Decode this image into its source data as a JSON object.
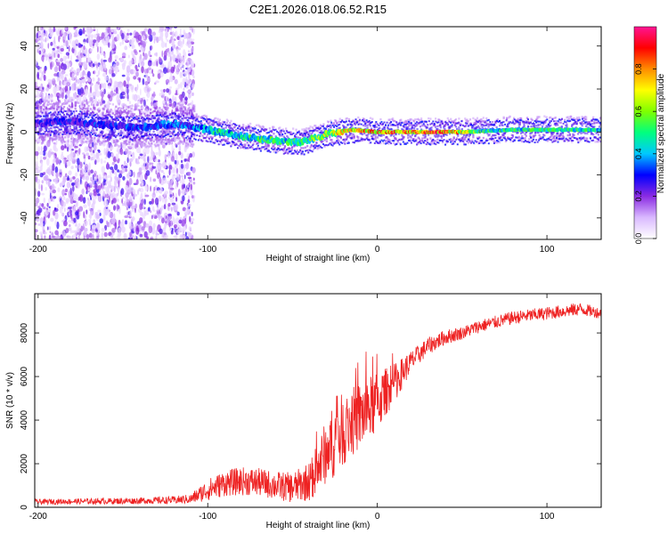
{
  "title": "C2E1.2026.018.06.52.R15",
  "chart_data": [
    {
      "type": "heatmap",
      "xlabel": "Height of straight line (km)",
      "ylabel": "Frequency (Hz)",
      "xlim": [
        -202,
        132
      ],
      "ylim": [
        -50,
        49
      ],
      "xticks": [
        -200,
        -100,
        0,
        100
      ],
      "yticks": [
        -40,
        -20,
        0,
        20,
        40
      ],
      "xtick_labels": [
        "-200",
        "-100",
        "0",
        "100"
      ],
      "ytick_labels": [
        "-40",
        "-20",
        "0",
        "20",
        "40"
      ],
      "ridge": [
        {
          "x": -200,
          "y": 4
        },
        {
          "x": -180,
          "y": 5
        },
        {
          "x": -160,
          "y": 3
        },
        {
          "x": -140,
          "y": 2
        },
        {
          "x": -120,
          "y": 4
        },
        {
          "x": -100,
          "y": 1
        },
        {
          "x": -80,
          "y": -2
        },
        {
          "x": -60,
          "y": -4
        },
        {
          "x": -45,
          "y": -5
        },
        {
          "x": -30,
          "y": -1
        },
        {
          "x": -15,
          "y": 1
        },
        {
          "x": 0,
          "y": 0
        },
        {
          "x": 20,
          "y": 0
        },
        {
          "x": 50,
          "y": 0
        },
        {
          "x": 80,
          "y": 1
        },
        {
          "x": 110,
          "y": 1
        },
        {
          "x": 132,
          "y": 1
        }
      ],
      "peak_amplitude": [
        {
          "x": -200,
          "a": 0.32
        },
        {
          "x": -110,
          "a": 0.42
        },
        {
          "x": -100,
          "a": 0.55
        },
        {
          "x": -60,
          "a": 0.6
        },
        {
          "x": -40,
          "a": 0.65
        },
        {
          "x": -20,
          "a": 0.85
        },
        {
          "x": 0,
          "a": 0.95
        },
        {
          "x": 20,
          "a": 1.0
        },
        {
          "x": 45,
          "a": 0.95
        },
        {
          "x": 60,
          "a": 0.6
        },
        {
          "x": 100,
          "a": 0.62
        },
        {
          "x": 132,
          "a": 0.6
        }
      ],
      "noise_region_x": [
        -202,
        -108
      ],
      "colorbar": {
        "label": "Normalized spectral amplitude",
        "range": [
          0,
          1
        ],
        "ticks": [
          0,
          0.2,
          0.4,
          0.6,
          0.8
        ],
        "tick_labels": [
          "0.0",
          "0.2",
          "0.4",
          "0.6",
          "0.8"
        ],
        "colors": [
          "#ffffff",
          "#d9b8ff",
          "#8a2be2",
          "#0000ff",
          "#00c8ff",
          "#00ff7f",
          "#7fff00",
          "#ffff00",
          "#ff8c00",
          "#ff0000",
          "#ff1493"
        ]
      }
    },
    {
      "type": "line",
      "xlabel": "Height of straight line (km)",
      "ylabel": "SNR (10 * v/v)",
      "xlim": [
        -202,
        132
      ],
      "ylim": [
        0,
        9800
      ],
      "xticks": [
        -200,
        -100,
        0,
        100
      ],
      "yticks": [
        0,
        2000,
        4000,
        6000,
        8000
      ],
      "xtick_labels": [
        "-200",
        "-100",
        "0",
        "100"
      ],
      "ytick_labels": [
        "0",
        "2000",
        "4000",
        "6000",
        "8000"
      ],
      "color": "#ee2222",
      "series": [
        {
          "name": "SNR",
          "x": [
            -202,
            -180,
            -160,
            -140,
            -120,
            -110,
            -100,
            -90,
            -80,
            -70,
            -60,
            -50,
            -40,
            -35,
            -30,
            -25,
            -20,
            -15,
            -10,
            -5,
            0,
            5,
            10,
            15,
            20,
            30,
            40,
            50,
            60,
            70,
            80,
            90,
            100,
            110,
            120,
            132
          ],
          "values": [
            250,
            270,
            280,
            300,
            330,
            380,
            800,
            1100,
            1200,
            1150,
            1000,
            900,
            1200,
            1800,
            2600,
            3100,
            3600,
            3900,
            4200,
            4500,
            4800,
            5300,
            5700,
            6200,
            6700,
            7400,
            7800,
            8000,
            8300,
            8500,
            8700,
            8800,
            8900,
            9000,
            9100,
            8900
          ],
          "spread": [
            120,
            130,
            140,
            150,
            180,
            220,
            500,
            600,
            650,
            650,
            650,
            700,
            900,
            1200,
            1500,
            1700,
            1700,
            1600,
            1600,
            1500,
            1400,
            1100,
            900,
            700,
            500,
            400,
            350,
            300,
            300,
            300,
            300,
            300,
            300,
            300,
            300,
            250
          ]
        }
      ]
    }
  ]
}
